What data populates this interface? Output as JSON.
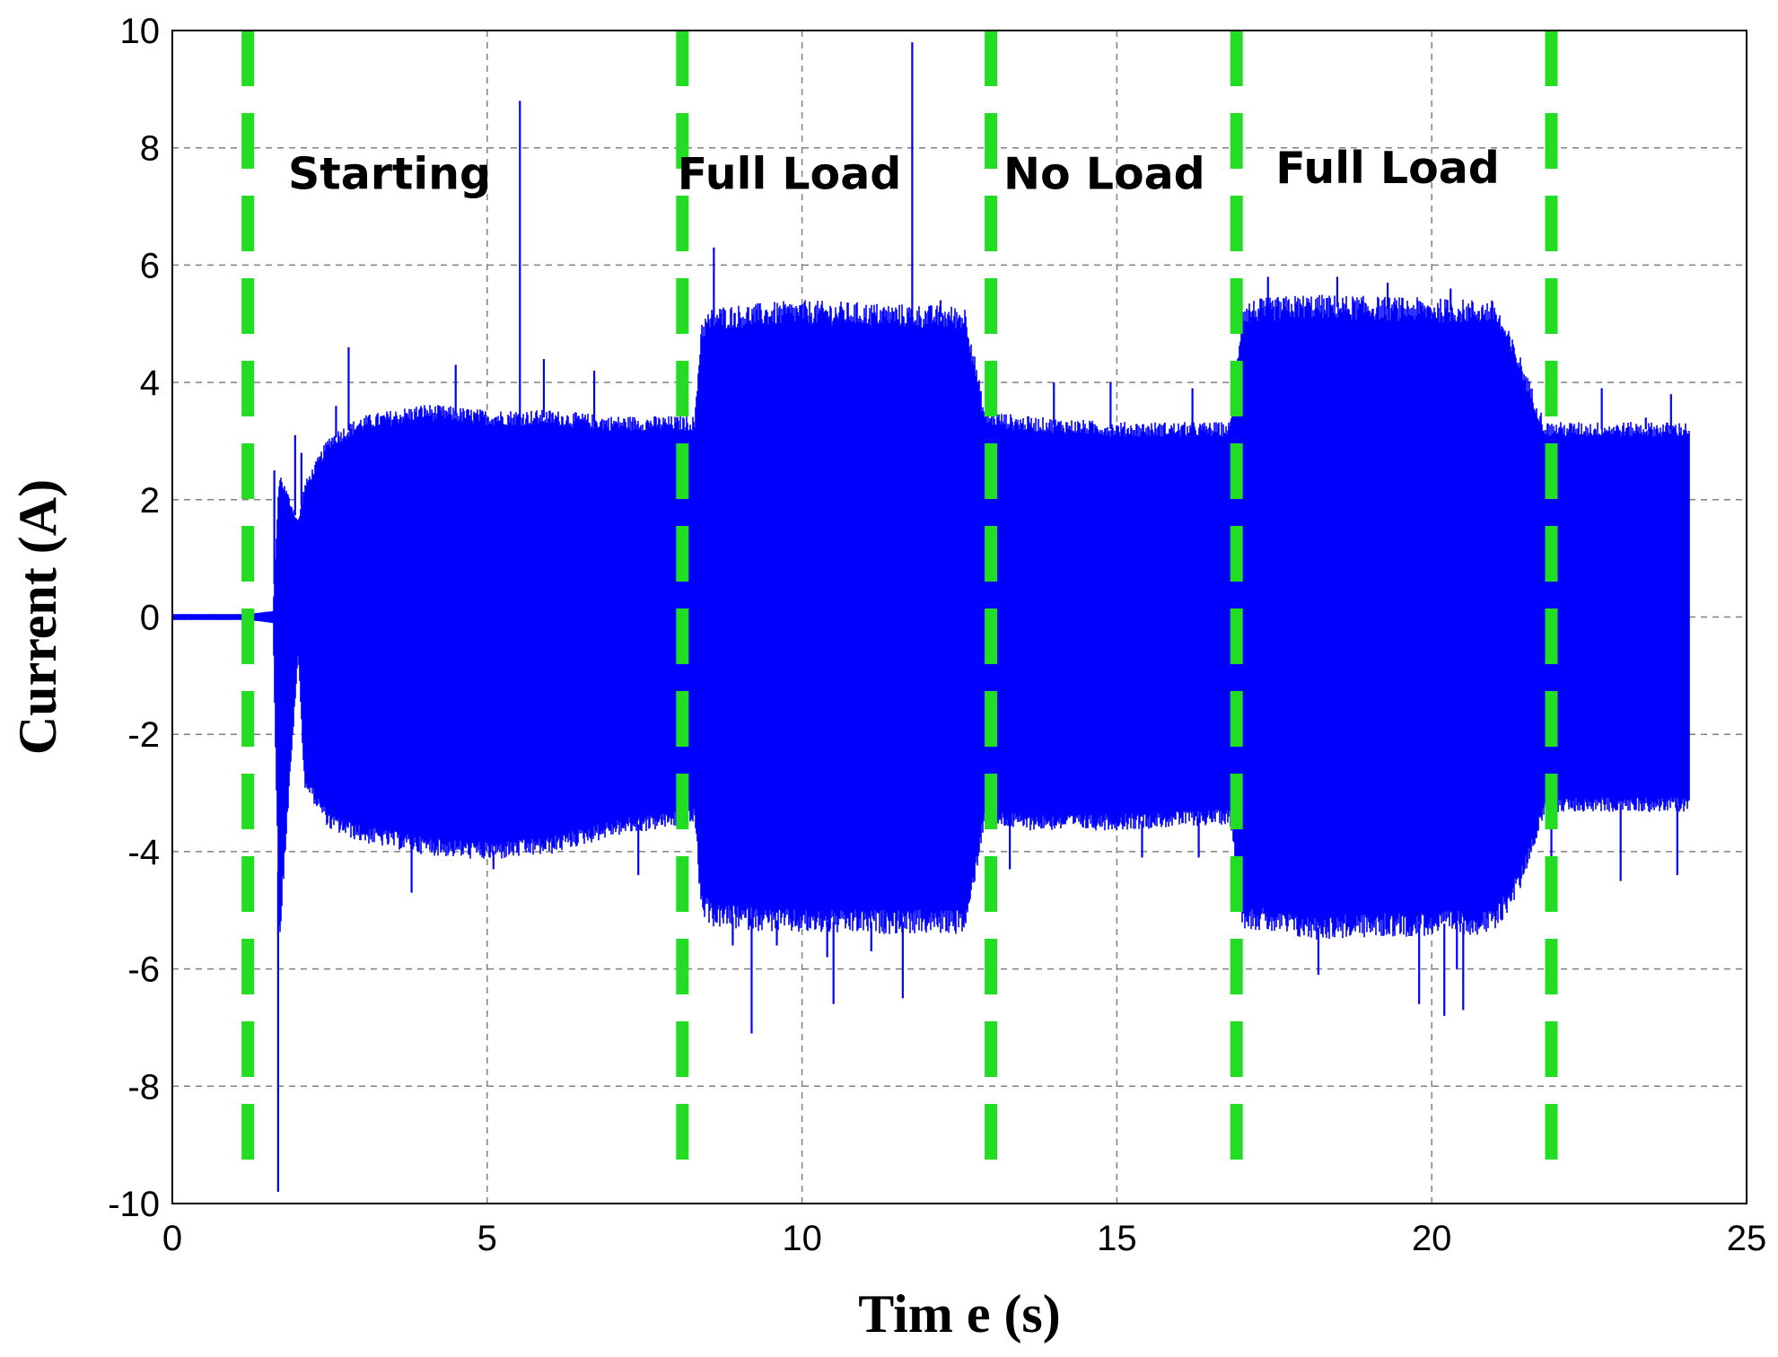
{
  "chart_data": {
    "type": "line",
    "title": "",
    "xlabel": "Tim e (s)",
    "ylabel": "Current (A)",
    "xlim": [
      0,
      25
    ],
    "ylim": [
      -10,
      10
    ],
    "xticks": [
      0,
      5,
      10,
      15,
      20,
      25
    ],
    "yticks": [
      -10,
      -8,
      -6,
      -4,
      -2,
      0,
      2,
      4,
      6,
      8,
      10
    ],
    "grid": true,
    "legend": "none",
    "colors": {
      "signal": "#0000ff",
      "marker": "#22dd22",
      "grid": "#808080"
    },
    "series": [
      {
        "x_range": [
          0,
          24.1
        ],
        "envelope": [
          {
            "t": 0.0,
            "max": 0.05,
            "min": -0.05
          },
          {
            "t": 1.2,
            "max": 0.05,
            "min": -0.05
          },
          {
            "t": 1.6,
            "max": 0.1,
            "min": -0.1
          },
          {
            "t": 1.7,
            "max": 2.4,
            "min": -5.4
          },
          {
            "t": 2.0,
            "max": 1.6,
            "min": -0.6
          },
          {
            "t": 2.1,
            "max": 2.2,
            "min": -2.8
          },
          {
            "t": 2.5,
            "max": 3.0,
            "min": -3.5
          },
          {
            "t": 3.0,
            "max": 3.3,
            "min": -3.7
          },
          {
            "t": 4.0,
            "max": 3.5,
            "min": -3.9
          },
          {
            "t": 5.0,
            "max": 3.4,
            "min": -4.0
          },
          {
            "t": 6.0,
            "max": 3.4,
            "min": -3.9
          },
          {
            "t": 7.0,
            "max": 3.3,
            "min": -3.6
          },
          {
            "t": 8.3,
            "max": 3.3,
            "min": -3.4
          },
          {
            "t": 8.4,
            "max": 4.9,
            "min": -4.9
          },
          {
            "t": 8.6,
            "max": 5.1,
            "min": -5.1
          },
          {
            "t": 10.0,
            "max": 5.2,
            "min": -5.2
          },
          {
            "t": 12.6,
            "max": 5.1,
            "min": -5.2
          },
          {
            "t": 12.9,
            "max": 3.4,
            "min": -3.4
          },
          {
            "t": 13.5,
            "max": 3.3,
            "min": -3.5
          },
          {
            "t": 15.0,
            "max": 3.2,
            "min": -3.5
          },
          {
            "t": 16.8,
            "max": 3.2,
            "min": -3.4
          },
          {
            "t": 17.0,
            "max": 5.2,
            "min": -5.1
          },
          {
            "t": 18.0,
            "max": 5.3,
            "min": -5.3
          },
          {
            "t": 21.0,
            "max": 5.2,
            "min": -5.2
          },
          {
            "t": 21.4,
            "max": 4.3,
            "min": -4.5
          },
          {
            "t": 21.8,
            "max": 3.2,
            "min": -3.2
          },
          {
            "t": 24.1,
            "max": 3.2,
            "min": -3.2
          }
        ],
        "spikes": [
          {
            "t": 1.68,
            "y": -9.8
          },
          {
            "t": 1.62,
            "y": 2.5
          },
          {
            "t": 1.95,
            "y": 3.1
          },
          {
            "t": 2.05,
            "y": 2.8
          },
          {
            "t": 2.8,
            "y": 4.6
          },
          {
            "t": 2.6,
            "y": 3.6
          },
          {
            "t": 3.8,
            "y": -4.7
          },
          {
            "t": 4.5,
            "y": 4.3
          },
          {
            "t": 5.1,
            "y": -4.3
          },
          {
            "t": 5.52,
            "y": 8.8
          },
          {
            "t": 5.9,
            "y": 4.4
          },
          {
            "t": 6.7,
            "y": 4.2
          },
          {
            "t": 7.4,
            "y": -4.4
          },
          {
            "t": 8.6,
            "y": 6.3
          },
          {
            "t": 8.9,
            "y": -5.6
          },
          {
            "t": 9.2,
            "y": -7.1
          },
          {
            "t": 9.6,
            "y": -5.6
          },
          {
            "t": 10.4,
            "y": -5.8
          },
          {
            "t": 10.5,
            "y": -6.6
          },
          {
            "t": 11.1,
            "y": -5.7
          },
          {
            "t": 11.6,
            "y": -6.5
          },
          {
            "t": 11.75,
            "y": 9.8
          },
          {
            "t": 12.2,
            "y": 5.4
          },
          {
            "t": 13.3,
            "y": -4.3
          },
          {
            "t": 14.0,
            "y": 4.0
          },
          {
            "t": 14.9,
            "y": 4.0
          },
          {
            "t": 15.4,
            "y": -4.1
          },
          {
            "t": 16.2,
            "y": 3.9
          },
          {
            "t": 16.3,
            "y": -4.1
          },
          {
            "t": 17.4,
            "y": 5.8
          },
          {
            "t": 18.2,
            "y": -6.1
          },
          {
            "t": 18.5,
            "y": 5.8
          },
          {
            "t": 19.3,
            "y": 5.7
          },
          {
            "t": 19.8,
            "y": -6.6
          },
          {
            "t": 20.2,
            "y": -6.8
          },
          {
            "t": 20.3,
            "y": 5.6
          },
          {
            "t": 20.4,
            "y": -6.0
          },
          {
            "t": 20.5,
            "y": -6.7
          },
          {
            "t": 21.0,
            "y": 5.0
          },
          {
            "t": 21.9,
            "y": -4.3
          },
          {
            "t": 22.7,
            "y": 3.9
          },
          {
            "t": 23.0,
            "y": -4.5
          },
          {
            "t": 23.4,
            "y": 3.4
          },
          {
            "t": 23.8,
            "y": 3.8
          },
          {
            "t": 23.9,
            "y": -4.4
          }
        ]
      }
    ],
    "phase_markers": [
      1.2,
      8.1,
      13.0,
      16.9,
      21.9
    ],
    "annotations": [
      {
        "text": "Starting",
        "x": 3.45,
        "y": 7.3
      },
      {
        "text": "Full Load",
        "x": 9.8,
        "y": 7.3
      },
      {
        "text": "No Load",
        "x": 14.8,
        "y": 7.3
      },
      {
        "text": "Full Load",
        "x": 19.3,
        "y": 7.4
      }
    ]
  }
}
